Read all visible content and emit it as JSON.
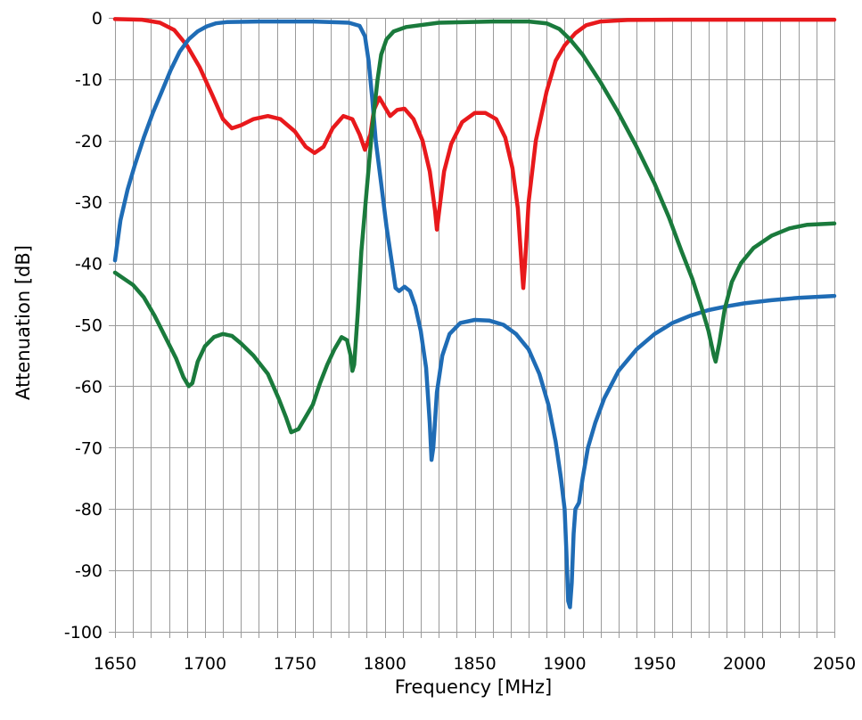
{
  "chart_data": {
    "type": "line",
    "title": "",
    "xlabel": "Frequency [MHz]",
    "ylabel": "Attenuation [dB]",
    "xlim": [
      1650,
      2050
    ],
    "ylim": [
      -100,
      0
    ],
    "x_major_ticks": [
      1650,
      1700,
      1750,
      1800,
      1850,
      1900,
      1950,
      2000,
      2050
    ],
    "x_minor_step": 10,
    "y_ticks": [
      0,
      -10,
      -20,
      -30,
      -40,
      -50,
      -60,
      -70,
      -80,
      -90,
      -100
    ],
    "grid": true,
    "legend": "none",
    "series": [
      {
        "color": "#e8191c",
        "points": [
          [
            1650,
            -0.2
          ],
          [
            1665,
            -0.3
          ],
          [
            1675,
            -0.8
          ],
          [
            1683,
            -2.0
          ],
          [
            1690,
            -4.5
          ],
          [
            1697,
            -8.0
          ],
          [
            1704,
            -12.5
          ],
          [
            1710,
            -16.5
          ],
          [
            1715,
            -18.0
          ],
          [
            1720,
            -17.5
          ],
          [
            1727,
            -16.5
          ],
          [
            1735,
            -16.0
          ],
          [
            1742,
            -16.5
          ],
          [
            1750,
            -18.5
          ],
          [
            1756,
            -21.0
          ],
          [
            1761,
            -22.0
          ],
          [
            1766,
            -21.0
          ],
          [
            1771,
            -18.0
          ],
          [
            1777,
            -16.0
          ],
          [
            1782,
            -16.5
          ],
          [
            1786,
            -19.0
          ],
          [
            1789,
            -21.5
          ],
          [
            1792,
            -19.0
          ],
          [
            1794,
            -15.0
          ],
          [
            1797,
            -13.0
          ],
          [
            1800,
            -14.5
          ],
          [
            1803,
            -16.0
          ],
          [
            1807,
            -15.0
          ],
          [
            1811,
            -14.8
          ],
          [
            1816,
            -16.5
          ],
          [
            1821,
            -20.0
          ],
          [
            1825,
            -25.0
          ],
          [
            1828,
            -31.5
          ],
          [
            1829,
            -34.5
          ],
          [
            1830,
            -32.0
          ],
          [
            1833,
            -25.0
          ],
          [
            1837,
            -20.5
          ],
          [
            1843,
            -17.0
          ],
          [
            1850,
            -15.5
          ],
          [
            1856,
            -15.5
          ],
          [
            1862,
            -16.5
          ],
          [
            1867,
            -19.5
          ],
          [
            1871,
            -24.5
          ],
          [
            1874,
            -31.0
          ],
          [
            1876,
            -40.0
          ],
          [
            1877,
            -44.0
          ],
          [
            1878,
            -40.0
          ],
          [
            1880,
            -30.0
          ],
          [
            1884,
            -20.0
          ],
          [
            1890,
            -12.0
          ],
          [
            1895,
            -7.0
          ],
          [
            1900,
            -4.5
          ],
          [
            1906,
            -2.5
          ],
          [
            1912,
            -1.2
          ],
          [
            1920,
            -0.6
          ],
          [
            1935,
            -0.35
          ],
          [
            1960,
            -0.3
          ],
          [
            2000,
            -0.3
          ],
          [
            2050,
            -0.3
          ]
        ]
      },
      {
        "color": "#1f6cb5",
        "points": [
          [
            1650,
            -39.5
          ],
          [
            1653,
            -33.0
          ],
          [
            1657,
            -28.0
          ],
          [
            1661,
            -24.0
          ],
          [
            1666,
            -19.5
          ],
          [
            1671,
            -15.5
          ],
          [
            1676,
            -12.0
          ],
          [
            1681,
            -8.5
          ],
          [
            1686,
            -5.5
          ],
          [
            1691,
            -3.5
          ],
          [
            1696,
            -2.2
          ],
          [
            1701,
            -1.4
          ],
          [
            1706,
            -0.9
          ],
          [
            1712,
            -0.7
          ],
          [
            1730,
            -0.6
          ],
          [
            1760,
            -0.6
          ],
          [
            1780,
            -0.8
          ],
          [
            1786,
            -1.3
          ],
          [
            1789,
            -3.0
          ],
          [
            1791,
            -7.0
          ],
          [
            1793,
            -13.0
          ],
          [
            1795,
            -20.0
          ],
          [
            1798,
            -27.0
          ],
          [
            1801,
            -34.0
          ],
          [
            1804,
            -40.0
          ],
          [
            1806,
            -44.0
          ],
          [
            1808,
            -44.5
          ],
          [
            1811,
            -43.8
          ],
          [
            1814,
            -44.5
          ],
          [
            1817,
            -47.0
          ],
          [
            1820,
            -51.0
          ],
          [
            1823,
            -57.0
          ],
          [
            1825,
            -66.0
          ],
          [
            1826,
            -72.0
          ],
          [
            1827,
            -70.0
          ],
          [
            1829,
            -61.0
          ],
          [
            1832,
            -55.0
          ],
          [
            1836,
            -51.5
          ],
          [
            1842,
            -49.7
          ],
          [
            1850,
            -49.2
          ],
          [
            1858,
            -49.3
          ],
          [
            1866,
            -50.0
          ],
          [
            1873,
            -51.5
          ],
          [
            1880,
            -54.0
          ],
          [
            1886,
            -58.0
          ],
          [
            1891,
            -63.0
          ],
          [
            1895,
            -69.0
          ],
          [
            1898,
            -75.0
          ],
          [
            1900,
            -80.0
          ],
          [
            1901,
            -87.0
          ],
          [
            1902,
            -95.0
          ],
          [
            1903,
            -96.0
          ],
          [
            1904,
            -92.0
          ],
          [
            1905,
            -84.0
          ],
          [
            1906,
            -80.0
          ],
          [
            1908,
            -79.0
          ],
          [
            1910,
            -75.0
          ],
          [
            1913,
            -70.0
          ],
          [
            1917,
            -66.0
          ],
          [
            1922,
            -62.0
          ],
          [
            1930,
            -57.5
          ],
          [
            1940,
            -54.0
          ],
          [
            1950,
            -51.5
          ],
          [
            1960,
            -49.7
          ],
          [
            1970,
            -48.5
          ],
          [
            1980,
            -47.6
          ],
          [
            1990,
            -47.0
          ],
          [
            2000,
            -46.5
          ],
          [
            2015,
            -46.0
          ],
          [
            2030,
            -45.6
          ],
          [
            2050,
            -45.3
          ]
        ]
      },
      {
        "color": "#1a7a3c",
        "points": [
          [
            1650,
            -41.5
          ],
          [
            1655,
            -42.5
          ],
          [
            1660,
            -43.5
          ],
          [
            1666,
            -45.5
          ],
          [
            1672,
            -48.5
          ],
          [
            1678,
            -52.0
          ],
          [
            1684,
            -55.5
          ],
          [
            1688,
            -58.5
          ],
          [
            1691,
            -60.0
          ],
          [
            1693,
            -59.5
          ],
          [
            1696,
            -56.0
          ],
          [
            1700,
            -53.5
          ],
          [
            1705,
            -52.0
          ],
          [
            1710,
            -51.5
          ],
          [
            1715,
            -51.8
          ],
          [
            1720,
            -53.0
          ],
          [
            1727,
            -55.0
          ],
          [
            1735,
            -58.0
          ],
          [
            1741,
            -62.0
          ],
          [
            1745,
            -65.0
          ],
          [
            1748,
            -67.5
          ],
          [
            1752,
            -67.0
          ],
          [
            1756,
            -65.0
          ],
          [
            1760,
            -63.0
          ],
          [
            1764,
            -59.5
          ],
          [
            1768,
            -56.5
          ],
          [
            1772,
            -54.0
          ],
          [
            1776,
            -52.0
          ],
          [
            1779,
            -52.5
          ],
          [
            1781,
            -55.0
          ],
          [
            1782,
            -57.5
          ],
          [
            1783,
            -56.5
          ],
          [
            1785,
            -48.0
          ],
          [
            1787,
            -38.0
          ],
          [
            1790,
            -28.0
          ],
          [
            1793,
            -18.0
          ],
          [
            1796,
            -10.0
          ],
          [
            1798,
            -6.0
          ],
          [
            1801,
            -3.5
          ],
          [
            1805,
            -2.2
          ],
          [
            1812,
            -1.5
          ],
          [
            1830,
            -0.8
          ],
          [
            1860,
            -0.6
          ],
          [
            1880,
            -0.6
          ],
          [
            1890,
            -0.9
          ],
          [
            1897,
            -1.8
          ],
          [
            1903,
            -3.5
          ],
          [
            1910,
            -6.0
          ],
          [
            1920,
            -10.5
          ],
          [
            1930,
            -15.5
          ],
          [
            1940,
            -21.0
          ],
          [
            1950,
            -27.0
          ],
          [
            1958,
            -32.5
          ],
          [
            1965,
            -38.0
          ],
          [
            1971,
            -42.5
          ],
          [
            1976,
            -47.0
          ],
          [
            1980,
            -51.0
          ],
          [
            1983,
            -55.0
          ],
          [
            1984,
            -56.0
          ],
          [
            1986,
            -53.0
          ],
          [
            1989,
            -47.5
          ],
          [
            1993,
            -43.0
          ],
          [
            1998,
            -40.0
          ],
          [
            2005,
            -37.5
          ],
          [
            2015,
            -35.5
          ],
          [
            2025,
            -34.3
          ],
          [
            2035,
            -33.7
          ],
          [
            2050,
            -33.5
          ]
        ]
      }
    ]
  }
}
